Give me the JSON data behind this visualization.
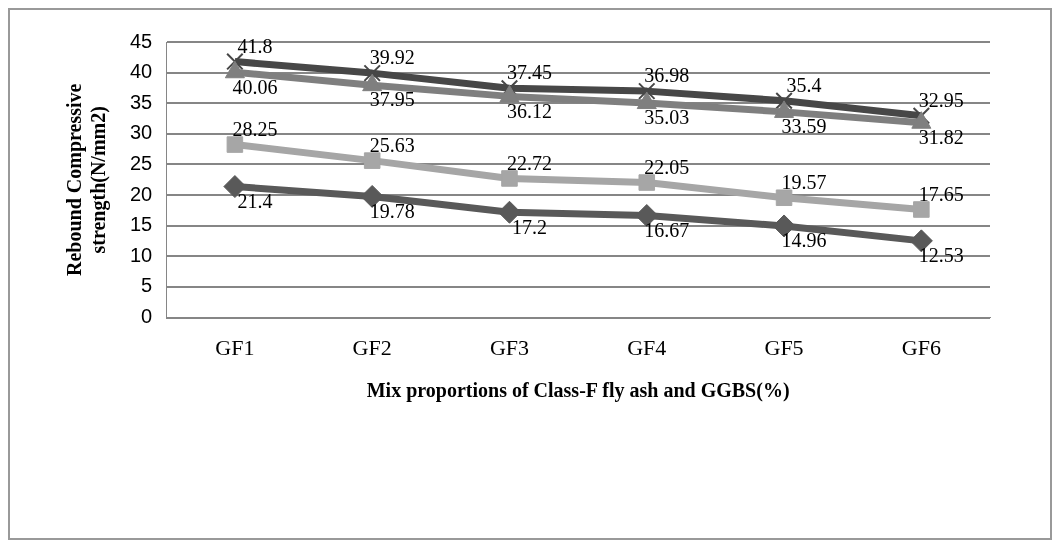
{
  "chart_data": {
    "type": "line",
    "xlabel": "Mix proportions of Class-F fly ash and GGBS(%)",
    "ylabel": "Rebound Compressive strength(N/mm2)",
    "categories": [
      "GF1",
      "GF2",
      "GF3",
      "GF4",
      "GF5",
      "GF6"
    ],
    "series": [
      {
        "color": "#595959",
        "marker": "diamond",
        "values": [
          21.4,
          19.78,
          17.2,
          16.67,
          14.96,
          12.53
        ]
      },
      {
        "color": "#a6a6a6",
        "marker": "square",
        "values": [
          28.25,
          25.63,
          22.72,
          22.05,
          19.57,
          17.65
        ]
      },
      {
        "color": "#7f7f7f",
        "marker": "triangle",
        "values": [
          40.06,
          37.95,
          36.12,
          35.03,
          33.59,
          31.82
        ]
      },
      {
        "color": "#474747",
        "marker": "cross",
        "values": [
          41.8,
          39.92,
          37.45,
          36.98,
          35.4,
          32.95
        ]
      }
    ],
    "ylim": [
      0,
      45
    ],
    "yticks": [
      0,
      5,
      10,
      15,
      20,
      25,
      30,
      35,
      40,
      45
    ],
    "grid": "y",
    "data_labels": true,
    "legend": false
  }
}
